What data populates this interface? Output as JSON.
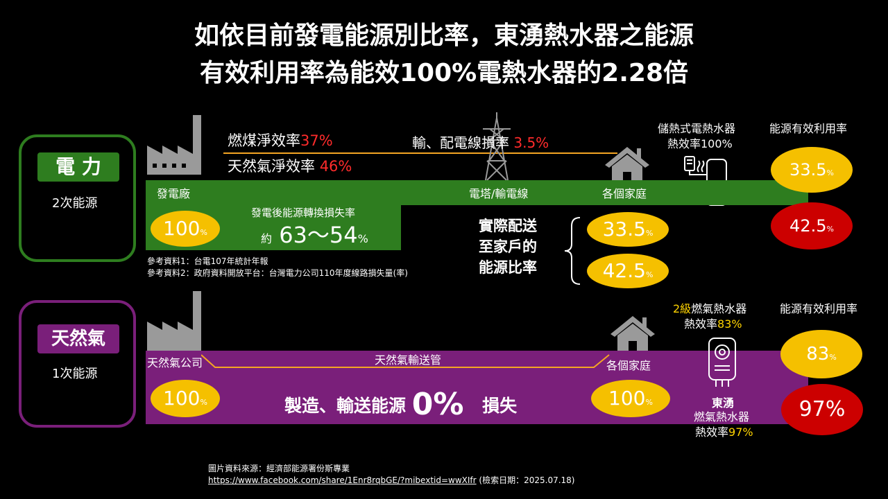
{
  "title": {
    "line1": "如依目前發電能源別比率，東湧熱水器之能源",
    "line2": "有效利用率為能效100%電熱水器的2.28倍"
  },
  "electric": {
    "tag": "電 力",
    "subtitle": "2次能源",
    "coal_label": "燃煤淨效率",
    "coal_value": "37%",
    "gas_label": "天然氣淨效率",
    "gas_value": "46%",
    "transmission_label": "輸、配電線損率",
    "transmission_value": "3.5%",
    "heater_title": "儲熱式電熱水器",
    "heater_eff": "熱效率100%",
    "efficiency_header": "能源有效利用率",
    "bar_plant": "發電廠",
    "bar_tower": "電塔/輸電線",
    "bar_home": "各個家庭",
    "loss_title": "發電後能源轉換損失率",
    "loss_prefix": "約",
    "loss_value": "63～54",
    "loss_unit": "%",
    "start_value": "100",
    "start_unit": "%",
    "delivered_line1": "實際配送",
    "delivered_line2": "至家戶的",
    "delivered_line3": "能源比率",
    "delivered_a": "33.5",
    "delivered_b": "42.5",
    "delivered_unit": "%",
    "eff_a": "33.5",
    "eff_b": "42.5",
    "eff_unit": "%",
    "ref1": "參考資料1：台電107年統計年報",
    "ref2": "參考資料2：政府資料開放平台：台灣電力公司110年度線路損失量(率)"
  },
  "gas": {
    "tag": "天然氣",
    "subtitle": "1次能源",
    "company": "天然氣公司",
    "pipeline": "天然氣輸送管",
    "home": "各個家庭",
    "heater_title_prefix": "2級",
    "heater_title": "燃氣熱水器",
    "heater_eff_label": "熱效率",
    "heater_eff_value": "83%",
    "efficiency_header": "能源有效利用率",
    "start_value": "100",
    "start_unit": "%",
    "loss_text": "製造、輸送能源",
    "loss_value": "0%",
    "loss_suffix": "損失",
    "home_value": "100",
    "home_unit": "%",
    "brand": "東湧",
    "brand_heater": "燃氣熱水器",
    "brand_eff_label": "熱效率",
    "brand_eff_value": "97%",
    "eff_a": "83",
    "eff_a_unit": "%",
    "eff_b": "97%"
  },
  "source": {
    "line1": "圖片資料來源：經濟部能源署份斯專業",
    "url": "https://www.facebook.com/share/1Enr8rqbGE/?mibextid=wwXIfr",
    "date": " (檢索日期：2025.07.18)"
  },
  "colors": {
    "green": "#2e7d1f",
    "purple": "#7a1f7a",
    "yellow_oval": "#f5c000",
    "red_oval": "#cc0000",
    "red_text": "#ff2b2b",
    "orange_text": "#f5a623",
    "line_orange": "#f5a623"
  },
  "icons": [
    "factory-icon",
    "tower-icon",
    "house-icon",
    "electric-heater-icon",
    "gas-heater-icon"
  ]
}
